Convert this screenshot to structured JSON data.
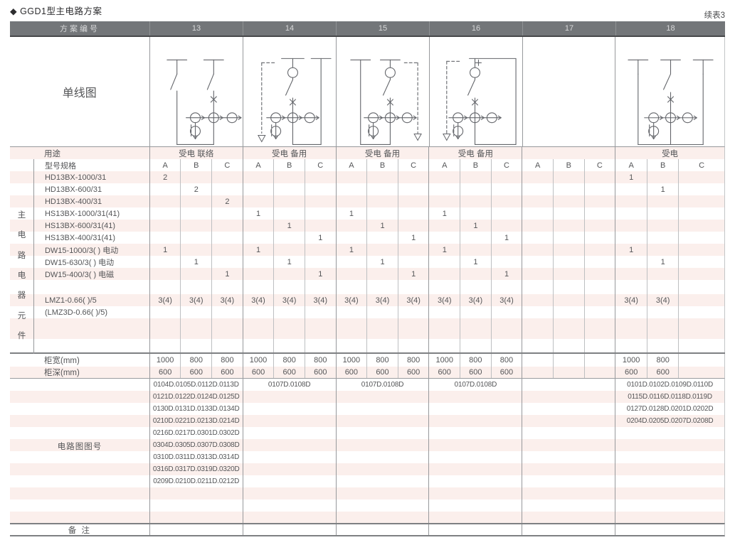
{
  "page": {
    "title": "◆ GGD1型主电路方案",
    "continuation": "续表3"
  },
  "colors": {
    "pink": "#fbefec",
    "header_bg": "#737679",
    "header_text": "#d8d9da",
    "heavy_line": "#7e8083",
    "text": "#555658"
  },
  "table": {
    "header": {
      "label": "方案编号",
      "schemes": [
        "13",
        "14",
        "15",
        "16",
        "17",
        "18"
      ]
    },
    "diagram_row_label": "单线图",
    "usage_label": "用途",
    "usage_values": [
      "受电 联络",
      "受电 备用",
      "受电 备用",
      "受电 备用",
      "",
      "受电"
    ],
    "spec_label": "型号规格",
    "abc": [
      "A",
      "B",
      "C"
    ],
    "side_label": "主电路电器元件",
    "component_rows": [
      {
        "label": "HD13BX-1000/31",
        "values": [
          "2",
          "",
          "",
          "",
          "",
          "",
          "",
          "",
          "",
          "",
          "",
          "",
          "",
          "",
          "",
          "1",
          "",
          ""
        ]
      },
      {
        "label": "HD13BX-600/31",
        "values": [
          "",
          "2",
          "",
          "",
          "",
          "",
          "",
          "",
          "",
          "",
          "",
          "",
          "",
          "",
          "",
          "",
          "1",
          ""
        ]
      },
      {
        "label": "HD13BX-400/31",
        "values": [
          "",
          "",
          "2",
          "",
          "",
          "",
          "",
          "",
          "",
          "",
          "",
          "",
          "",
          "",
          "",
          "",
          "",
          ""
        ]
      },
      {
        "label": "HS13BX-1000/31(41)",
        "values": [
          "",
          "",
          "",
          "1",
          "",
          "",
          "1",
          "",
          "",
          "1",
          "",
          "",
          "",
          "",
          "",
          "",
          "",
          ""
        ]
      },
      {
        "label": "HS13BX-600/31(41)",
        "values": [
          "",
          "",
          "",
          "",
          "1",
          "",
          "",
          "1",
          "",
          "",
          "1",
          "",
          "",
          "",
          "",
          "",
          "",
          ""
        ]
      },
      {
        "label": "HS13BX-400/31(41)",
        "values": [
          "",
          "",
          "",
          "",
          "",
          "1",
          "",
          "",
          "1",
          "",
          "",
          "1",
          "",
          "",
          "",
          "",
          "",
          ""
        ]
      },
      {
        "label": "DW15-1000/3(  )  电动",
        "values": [
          "1",
          "",
          "",
          "1",
          "",
          "",
          "1",
          "",
          "",
          "1",
          "",
          "",
          "",
          "",
          "",
          "1",
          "",
          ""
        ]
      },
      {
        "label": "DW15-630/3(  )  电动",
        "values": [
          "",
          "1",
          "",
          "",
          "1",
          "",
          "",
          "1",
          "",
          "",
          "1",
          "",
          "",
          "",
          "",
          "",
          "1",
          ""
        ]
      },
      {
        "label": "DW15-400/3(  )  电磁",
        "values": [
          "",
          "",
          "1",
          "",
          "",
          "1",
          "",
          "",
          "1",
          "",
          "",
          "1",
          "",
          "",
          "",
          "",
          "",
          ""
        ]
      },
      {
        "label": "",
        "values": [
          "",
          "",
          "",
          "",
          "",
          "",
          "",
          "",
          "",
          "",
          "",
          "",
          "",
          "",
          "",
          "",
          "",
          ""
        ]
      },
      {
        "label": "LMZ1-0.66(  )/5",
        "values": [
          "3(4)",
          "3(4)",
          "3(4)",
          "3(4)",
          "3(4)",
          "3(4)",
          "3(4)",
          "3(4)",
          "3(4)",
          "3(4)",
          "3(4)",
          "3(4)",
          "",
          "",
          "",
          "3(4)",
          "3(4)",
          ""
        ]
      },
      {
        "label": "(LMZ3D-0.66(  )/5)",
        "values": [
          "",
          "",
          "",
          "",
          "",
          "",
          "",
          "",
          "",
          "",
          "",
          "",
          "",
          "",
          "",
          "",
          "",
          ""
        ]
      },
      {
        "label": "",
        "values": [
          "",
          "",
          "",
          "",
          "",
          "",
          "",
          "",
          "",
          "",
          "",
          "",
          "",
          "",
          "",
          "",
          "",
          ""
        ]
      },
      {
        "label": "",
        "values": [
          "",
          "",
          "",
          "",
          "",
          "",
          "",
          "",
          "",
          "",
          "",
          "",
          "",
          "",
          "",
          "",
          "",
          ""
        ]
      }
    ],
    "width_label": "柜宽(mm)",
    "width_values": [
      "1000",
      "800",
      "800",
      "1000",
      "800",
      "800",
      "1000",
      "800",
      "800",
      "1000",
      "800",
      "800",
      "",
      "",
      "",
      "1000",
      "800",
      ""
    ],
    "depth_label": "柜深(mm)",
    "depth_values": [
      "600",
      "600",
      "600",
      "600",
      "600",
      "600",
      "600",
      "600",
      "600",
      "600",
      "600",
      "600",
      "",
      "",
      "",
      "600",
      "600",
      ""
    ],
    "circuit_label": "电路图图号",
    "circuit_rows": [
      {
        "c13": "0104D.0105D.0112D.0113D",
        "c14": "0107D.0108D",
        "c15": "0107D.0108D",
        "c16": "0107D.0108D",
        "c17": "",
        "c18": "0101D.0102D.0109D.0110D"
      },
      {
        "c13": "0121D.0122D.0124D.0125D",
        "c14": "",
        "c15": "",
        "c16": "",
        "c17": "",
        "c18": "0115D.0116D.0118D.0119D"
      },
      {
        "c13": "0130D.0131D.0133D.0134D",
        "c14": "",
        "c15": "",
        "c16": "",
        "c17": "",
        "c18": "0127D.0128D.0201D.0202D"
      },
      {
        "c13": "0210D.0221D.0213D.0214D",
        "c14": "",
        "c15": "",
        "c16": "",
        "c17": "",
        "c18": "0204D.0205D.0207D.0208D"
      },
      {
        "c13": "0216D.0217D.0301D.0302D",
        "c14": "",
        "c15": "",
        "c16": "",
        "c17": "",
        "c18": ""
      },
      {
        "c13": "0304D.0305D.0307D.0308D",
        "c14": "",
        "c15": "",
        "c16": "",
        "c17": "",
        "c18": ""
      },
      {
        "c13": "0310D.0311D.0313D.0314D",
        "c14": "",
        "c15": "",
        "c16": "",
        "c17": "",
        "c18": ""
      },
      {
        "c13": "0316D.0317D.0319D.0320D",
        "c14": "",
        "c15": "",
        "c16": "",
        "c17": "",
        "c18": ""
      },
      {
        "c13": "0209D.0210D.0211D.0212D",
        "c14": "",
        "c15": "",
        "c16": "",
        "c17": "",
        "c18": ""
      },
      {
        "c13": "",
        "c14": "",
        "c15": "",
        "c16": "",
        "c17": "",
        "c18": ""
      },
      {
        "c13": "",
        "c14": "",
        "c15": "",
        "c16": "",
        "c17": "",
        "c18": ""
      },
      {
        "c13": "",
        "c14": "",
        "c15": "",
        "c16": "",
        "c17": "",
        "c18": ""
      }
    ],
    "remark_label": "备 注"
  }
}
